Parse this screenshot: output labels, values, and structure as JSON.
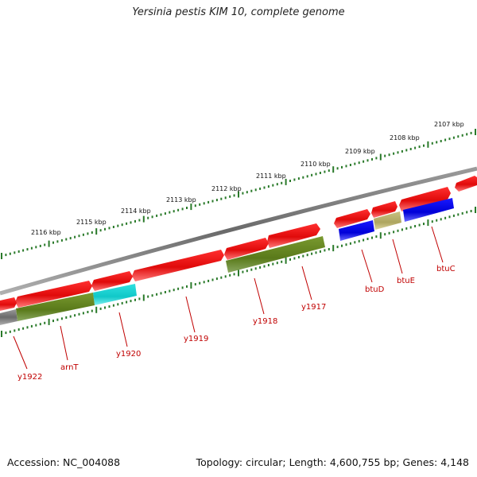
{
  "title": "Yersinia pestis KIM 10, complete genome",
  "accession": "Accession: NC_004088",
  "topology": "Topology: circular; Length: 4,600,755 bp; Genes: 4,148",
  "colors": {
    "backbone": "#808080",
    "ticks": "#2a7a2a",
    "cds": "#e81010",
    "cds_light": "#ff6060",
    "label": "#c00000"
  },
  "scale": {
    "labels": [
      "2107 kbp",
      "2108 kbp",
      "2109 kbp",
      "2110 kbp",
      "2111 kbp",
      "2112 kbp",
      "2113 kbp",
      "2114 kbp",
      "2115 kbp",
      "2116 kbp"
    ]
  },
  "genes": [
    {
      "label": "btuC"
    },
    {
      "label": "btuE"
    },
    {
      "label": "btuD"
    },
    {
      "label": "y1917"
    },
    {
      "label": "y1918"
    },
    {
      "label": "y1919"
    },
    {
      "label": "y1920"
    },
    {
      "label": "arnT"
    },
    {
      "label": "y1922"
    }
  ]
}
